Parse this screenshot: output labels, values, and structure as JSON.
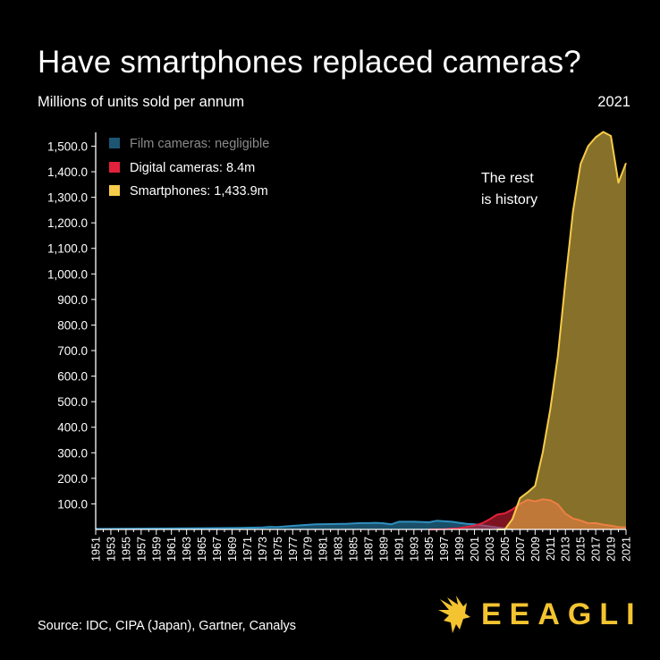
{
  "header": {
    "title": "Have smartphones replaced cameras?",
    "subtitle": "Millions of units sold per annum",
    "year_label": "2021"
  },
  "footer": {
    "source": "Source: IDC, CIPA (Japan), Gartner, Canalys",
    "brand": "EEAGLI",
    "brand_icon": "eagle-icon"
  },
  "colors": {
    "film": "#2f8fbf",
    "digital": "#e2223b",
    "smartphone": "#f6cc4a",
    "background": "#000000",
    "text": "#ffffff",
    "brand": "#f4c430"
  },
  "chart_data": {
    "type": "area",
    "title": "Have smartphones replaced cameras?",
    "ylabel": "Millions of units sold per annum",
    "ylim": [
      0,
      1550
    ],
    "xlim": [
      1951,
      2021
    ],
    "y_ticks": [
      "100.0",
      "200.0",
      "300.0",
      "400.0",
      "500.0",
      "600.0",
      "700.0",
      "800.0",
      "900.0",
      "1,000.0",
      "1,100.0",
      "1,200.0",
      "1,300.0",
      "1,400.0",
      "1,500.0"
    ],
    "y_tick_values": [
      100,
      200,
      300,
      400,
      500,
      600,
      700,
      800,
      900,
      1000,
      1100,
      1200,
      1300,
      1400,
      1500
    ],
    "x_ticks": [
      "1951",
      "1953",
      "1955",
      "1957",
      "1959",
      "1961",
      "1963",
      "1965",
      "1967",
      "1969",
      "1971",
      "1973",
      "1975",
      "1977",
      "1979",
      "1981",
      "1983",
      "1985",
      "1987",
      "1989",
      "1991",
      "1993",
      "1995",
      "1997",
      "1999",
      "2001",
      "2003",
      "2005",
      "2007",
      "2009",
      "2011",
      "2013",
      "2015",
      "2017",
      "2019",
      "2021"
    ],
    "legend_position": "top-left",
    "grid": false,
    "annotation": {
      "text_line1": "The rest",
      "text_line2": "is history",
      "x": 2008,
      "y": 1300
    },
    "series": [
      {
        "name": "Film cameras: negligible",
        "key": "film",
        "x": [
          1951,
          1955,
          1960,
          1965,
          1970,
          1973,
          1974,
          1975,
          1976,
          1978,
          1980,
          1982,
          1984,
          1986,
          1987,
          1988,
          1989,
          1990,
          1991,
          1993,
          1995,
          1996,
          1997,
          1998,
          1999,
          2000,
          2001,
          2002,
          2003,
          2004,
          2005,
          2006
        ],
        "values": [
          2,
          3,
          4,
          5,
          6,
          8,
          10,
          9,
          12,
          16,
          20,
          21,
          22,
          25,
          25,
          26,
          24,
          20,
          30,
          30,
          28,
          34,
          32,
          30,
          26,
          22,
          20,
          16,
          12,
          8,
          4,
          0
        ]
      },
      {
        "name": "Digital cameras: 8.4m",
        "key": "digital",
        "x": [
          1995,
          1997,
          1999,
          2000,
          2001,
          2002,
          2003,
          2004,
          2005,
          2006,
          2007,
          2008,
          2009,
          2010,
          2011,
          2012,
          2013,
          2014,
          2015,
          2016,
          2017,
          2018,
          2019,
          2020,
          2021
        ],
        "values": [
          0,
          1,
          5,
          10,
          15,
          24,
          40,
          58,
          63,
          78,
          100,
          116,
          110,
          118,
          114,
          98,
          62,
          43,
          35,
          24,
          25,
          19,
          15,
          9,
          8.4
        ]
      },
      {
        "name": "Smartphones: 1,433.9m",
        "key": "smartphone",
        "x": [
          2004,
          2005,
          2006,
          2007,
          2008,
          2009,
          2010,
          2011,
          2012,
          2013,
          2014,
          2015,
          2016,
          2017,
          2018,
          2019,
          2020,
          2021
        ],
        "values": [
          0,
          0,
          40,
          122,
          145,
          170,
          300,
          470,
          680,
          970,
          1245,
          1430,
          1500,
          1535,
          1556,
          1540,
          1357,
          1433.9
        ]
      }
    ]
  }
}
